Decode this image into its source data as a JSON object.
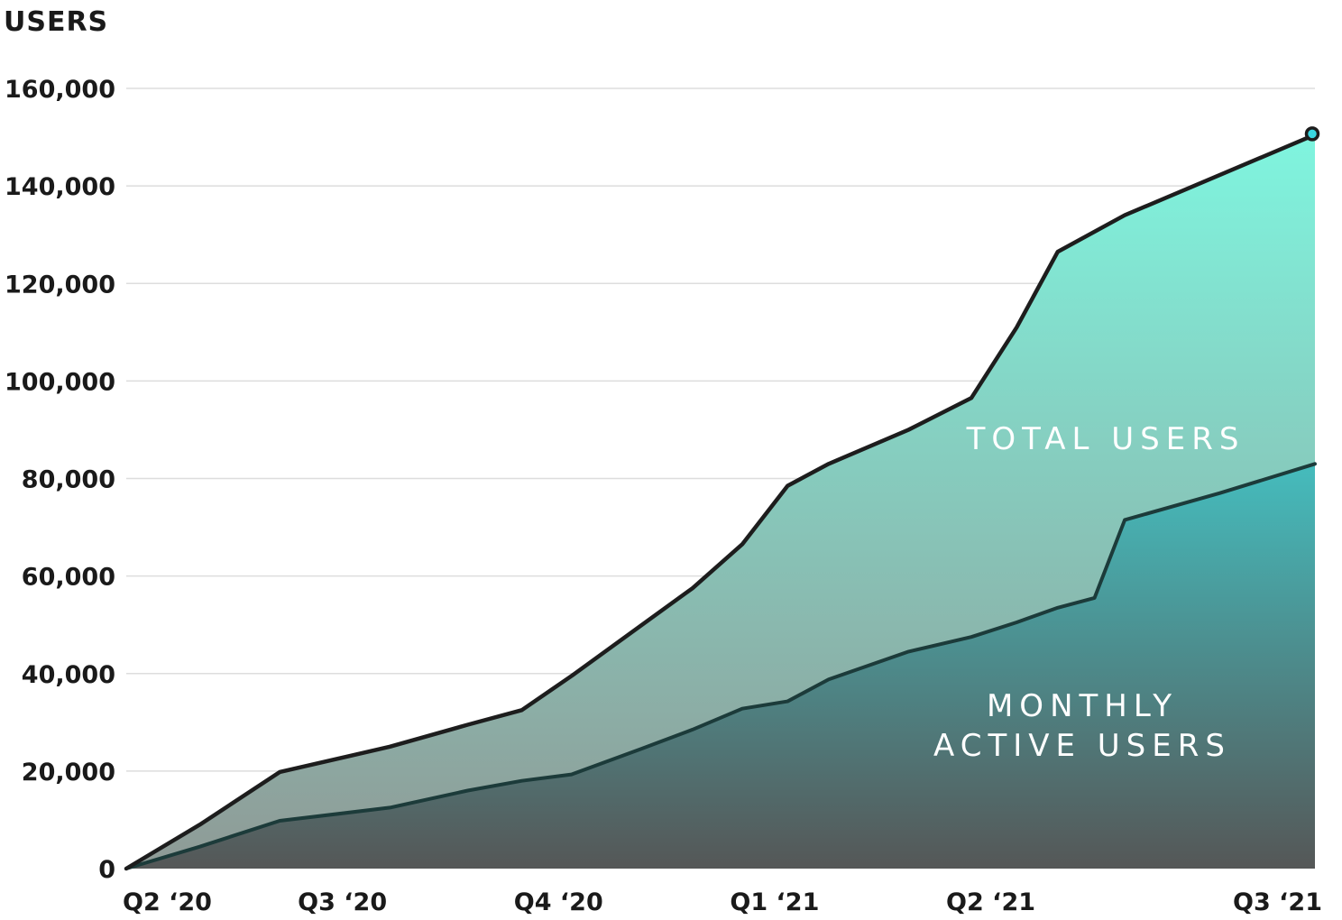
{
  "chart_data": {
    "type": "area",
    "ylabel": "USERS",
    "ylim": [
      0,
      160000
    ],
    "yticks": [
      {
        "value": 0,
        "label": "0"
      },
      {
        "value": 20000,
        "label": "20,000"
      },
      {
        "value": 40000,
        "label": "40,000"
      },
      {
        "value": 60000,
        "label": "60,000"
      },
      {
        "value": 80000,
        "label": "80,000"
      },
      {
        "value": 100000,
        "label": "100,000"
      },
      {
        "value": 120000,
        "label": "120,000"
      },
      {
        "value": 140000,
        "label": "140,000"
      },
      {
        "value": 160000,
        "label": "160,000"
      }
    ],
    "xlim": [
      0,
      5.5
    ],
    "xticks": [
      {
        "x": 0,
        "label": "Q2 ‘20"
      },
      {
        "x": 1,
        "label": "Q3 ‘20"
      },
      {
        "x": 2,
        "label": "Q4 ‘20"
      },
      {
        "x": 3,
        "label": "Q1 ‘21"
      },
      {
        "x": 4,
        "label": "Q2 ‘21"
      },
      {
        "x": 5,
        "label": "Q3 ‘21"
      }
    ],
    "grid": true,
    "series": [
      {
        "name": "TOTAL USERS",
        "color_top": "#7ff5df",
        "color_bottom": "#8f9a96",
        "points": [
          [
            0.0,
            0
          ],
          [
            0.34,
            9000
          ],
          [
            0.71,
            19800
          ],
          [
            1.22,
            25000
          ],
          [
            1.58,
            29500
          ],
          [
            1.83,
            32500
          ],
          [
            2.06,
            39500
          ],
          [
            2.38,
            49800
          ],
          [
            2.62,
            57500
          ],
          [
            2.85,
            66500
          ],
          [
            3.06,
            78500
          ],
          [
            3.25,
            83000
          ],
          [
            3.62,
            90000
          ],
          [
            3.91,
            96500
          ],
          [
            4.12,
            111000
          ],
          [
            4.31,
            126500
          ],
          [
            4.62,
            134000
          ],
          [
            5.5,
            150500
          ]
        ]
      },
      {
        "name": "MONTHLY\nACTIVE USERS",
        "color_top": "#45bcbd",
        "color_bottom": "#555757",
        "points": [
          [
            0.0,
            0
          ],
          [
            0.34,
            4500
          ],
          [
            0.71,
            9800
          ],
          [
            1.22,
            12500
          ],
          [
            1.58,
            16000
          ],
          [
            1.83,
            18000
          ],
          [
            2.06,
            19300
          ],
          [
            2.38,
            24500
          ],
          [
            2.62,
            28500
          ],
          [
            2.85,
            32800
          ],
          [
            3.06,
            34300
          ],
          [
            3.25,
            38800
          ],
          [
            3.62,
            44500
          ],
          [
            3.91,
            47500
          ],
          [
            4.12,
            50500
          ],
          [
            4.31,
            53500
          ],
          [
            4.48,
            55500
          ],
          [
            4.62,
            71500
          ],
          [
            5.06,
            77000
          ],
          [
            5.5,
            83000
          ]
        ]
      }
    ]
  }
}
